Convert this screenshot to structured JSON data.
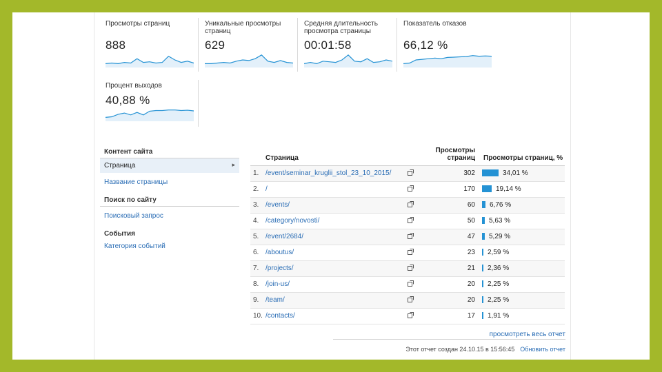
{
  "scorecards": [
    {
      "label": "Просмотры страниц",
      "value": "888",
      "spark": [
        0.2,
        0.25,
        0.2,
        0.3,
        0.25,
        0.6,
        0.3,
        0.35,
        0.25,
        0.3,
        0.8,
        0.5,
        0.3,
        0.4,
        0.25
      ]
    },
    {
      "label": "Уникальные просмотры страниц",
      "value": "629",
      "spark": [
        0.2,
        0.2,
        0.25,
        0.3,
        0.25,
        0.4,
        0.5,
        0.45,
        0.6,
        0.9,
        0.4,
        0.3,
        0.45,
        0.3,
        0.25
      ]
    },
    {
      "label": "Средняя длительность просмотра страницы",
      "value": "00:01:58",
      "spark": [
        0.2,
        0.3,
        0.2,
        0.4,
        0.35,
        0.3,
        0.5,
        0.9,
        0.4,
        0.35,
        0.6,
        0.3,
        0.35,
        0.5,
        0.4
      ]
    },
    {
      "label": "Показатель отказов",
      "value": "66,12 %",
      "spark": [
        0.2,
        0.25,
        0.5,
        0.55,
        0.6,
        0.65,
        0.6,
        0.7,
        0.72,
        0.75,
        0.78,
        0.85,
        0.8,
        0.82,
        0.8
      ]
    },
    {
      "label": "Процент выходов",
      "value": "40,88 %",
      "spark": [
        0.2,
        0.25,
        0.45,
        0.55,
        0.4,
        0.6,
        0.4,
        0.7,
        0.75,
        0.75,
        0.8,
        0.8,
        0.75,
        0.78,
        0.72
      ]
    }
  ],
  "nav": {
    "content_heading": "Контент сайта",
    "active_item": "Страница",
    "page_title_link": "Название страницы",
    "search_heading": "Поиск по сайту",
    "search_link": "Поисковый запрос",
    "events_heading": "События",
    "events_link": "Категория событий"
  },
  "table": {
    "col_page": "Страница",
    "col_views": "Просмотры страниц",
    "col_pct": "Просмотры страниц, %",
    "rows": [
      {
        "rank": "1.",
        "page": "/event/seminar_kruglii_stol_23_10_2015/",
        "views": "302",
        "pct": "34,01 %",
        "share": 34.01
      },
      {
        "rank": "2.",
        "page": "/",
        "views": "170",
        "pct": "19,14 %",
        "share": 19.14
      },
      {
        "rank": "3.",
        "page": "/events/",
        "views": "60",
        "pct": "6,76 %",
        "share": 6.76
      },
      {
        "rank": "4.",
        "page": "/category/novosti/",
        "views": "50",
        "pct": "5,63 %",
        "share": 5.63
      },
      {
        "rank": "5.",
        "page": "/event/2684/",
        "views": "47",
        "pct": "5,29 %",
        "share": 5.29
      },
      {
        "rank": "6.",
        "page": "/aboutus/",
        "views": "23",
        "pct": "2,59 %",
        "share": 2.59
      },
      {
        "rank": "7.",
        "page": "/projects/",
        "views": "21",
        "pct": "2,36 %",
        "share": 2.36
      },
      {
        "rank": "8.",
        "page": "/join-us/",
        "views": "20",
        "pct": "2,25 %",
        "share": 2.25
      },
      {
        "rank": "9.",
        "page": "/team/",
        "views": "20",
        "pct": "2,25 %",
        "share": 2.25
      },
      {
        "rank": "10.",
        "page": "/contacts/",
        "views": "17",
        "pct": "1,91 %",
        "share": 1.91
      }
    ]
  },
  "footer": {
    "view_full": "просмотреть весь отчет",
    "created": "Этот отчет создан 24.10.15 в 15:56:45",
    "refresh": "Обновить отчет"
  }
}
